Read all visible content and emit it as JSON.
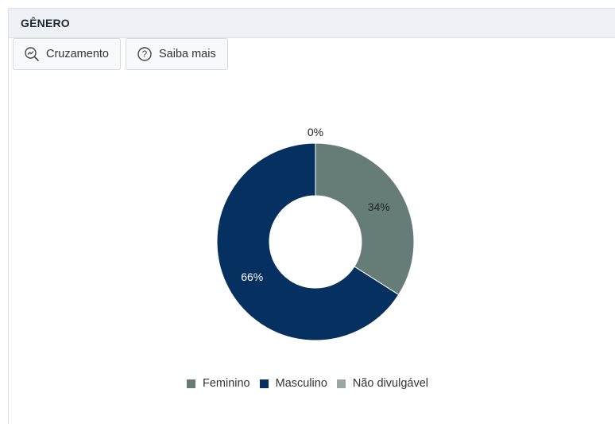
{
  "panel": {
    "title": "GÊNERO"
  },
  "toolbar": {
    "cross_label": "Cruzamento",
    "help_label": "Saiba mais"
  },
  "chart_data": {
    "type": "pie",
    "donut": true,
    "categories": [
      "Feminino",
      "Masculino",
      "Não divulgável"
    ],
    "values": [
      34,
      66,
      0
    ],
    "labels": [
      "34%",
      "66%",
      "0%"
    ],
    "colors": [
      "#667d77",
      "#05305f",
      "#98a8a6"
    ],
    "legend": "bottom"
  }
}
